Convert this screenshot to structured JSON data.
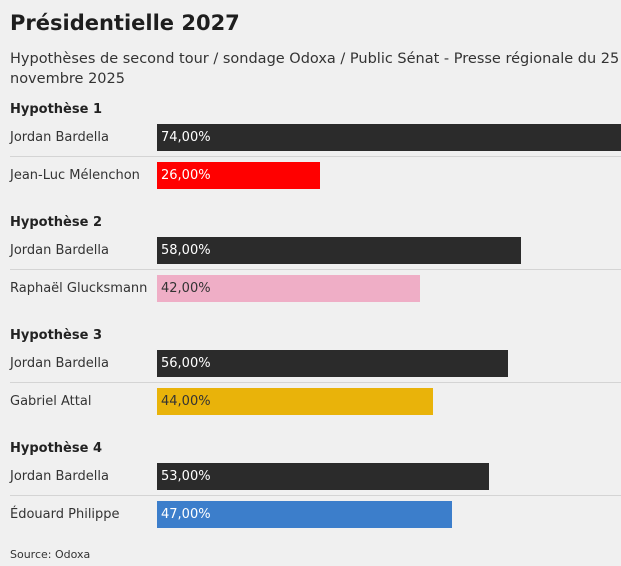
{
  "chart_data": {
    "type": "bar",
    "orientation": "horizontal",
    "title": "Présidentielle 2027",
    "subtitle": "Hypothèses de second tour / sondage Odoxa / Public Sénat - Presse régionale du 25 novembre 2025",
    "source": "Source: Odoxa",
    "scale_max": 74,
    "groups": [
      {
        "name": "Hypothèse 1",
        "rows": [
          {
            "label": "Jordan Bardella",
            "value": 74,
            "display": "74,00%",
            "color": "#2b2b2b",
            "text_color": "#ffffff"
          },
          {
            "label": "Jean-Luc Mélenchon",
            "value": 26,
            "display": "26,00%",
            "color": "#ff0000",
            "text_color": "#ffffff"
          }
        ]
      },
      {
        "name": "Hypothèse 2",
        "rows": [
          {
            "label": "Jordan Bardella",
            "value": 58,
            "display": "58,00%",
            "color": "#2b2b2b",
            "text_color": "#ffffff"
          },
          {
            "label": "Raphaël Glucksmann",
            "value": 42,
            "display": "42,00%",
            "color": "#efaec6",
            "text_color": "#333333"
          }
        ]
      },
      {
        "name": "Hypothèse 3",
        "rows": [
          {
            "label": "Jordan Bardella",
            "value": 56,
            "display": "56,00%",
            "color": "#2b2b2b",
            "text_color": "#ffffff"
          },
          {
            "label": "Gabriel Attal",
            "value": 44,
            "display": "44,00%",
            "color": "#e9b30a",
            "text_color": "#333333"
          }
        ]
      },
      {
        "name": "Hypothèse 4",
        "rows": [
          {
            "label": "Jordan Bardella",
            "value": 53,
            "display": "53,00%",
            "color": "#2b2b2b",
            "text_color": "#ffffff"
          },
          {
            "label": "Édouard Philippe",
            "value": 47,
            "display": "47,00%",
            "color": "#3c7ecb",
            "text_color": "#ffffff"
          }
        ]
      }
    ]
  }
}
